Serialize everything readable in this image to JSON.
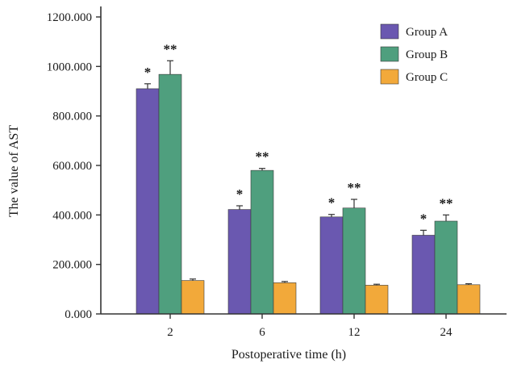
{
  "chart_data": {
    "type": "bar",
    "title": "",
    "xlabel": "Postoperative time (h)",
    "ylabel": "The value of AST",
    "categories": [
      "2",
      "6",
      "12",
      "24"
    ],
    "ylim": [
      0,
      1200
    ],
    "yticks": [
      "0.000",
      "200.000",
      "400.000",
      "600.000",
      "800.000",
      "1000.000",
      "1200.000"
    ],
    "grid": false,
    "legend_position": "top-right",
    "error_bars": true,
    "series": [
      {
        "name": "Group A",
        "color": "#6a58b0",
        "values": [
          910,
          422,
          392,
          318
        ],
        "errors": [
          20,
          15,
          10,
          20
        ],
        "annotations": [
          "*",
          "*",
          "*",
          "*"
        ]
      },
      {
        "name": "Group B",
        "color": "#4f9f7e",
        "values": [
          968,
          580,
          428,
          375
        ],
        "errors": [
          55,
          8,
          35,
          25
        ],
        "annotations": [
          "**",
          "**",
          "**",
          "**"
        ]
      },
      {
        "name": "Group C",
        "color": "#f2a93a",
        "values": [
          135,
          126,
          116,
          118
        ],
        "errors": [
          6,
          5,
          4,
          4
        ],
        "annotations": [
          "",
          "",
          "",
          ""
        ]
      }
    ]
  }
}
